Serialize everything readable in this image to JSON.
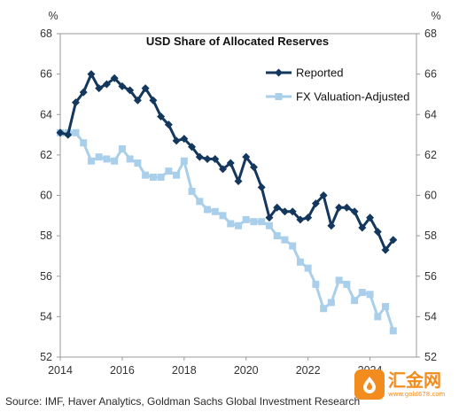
{
  "chart_data": {
    "type": "line",
    "title": "USD Share of Allocated Reserves",
    "left_unit": "%",
    "right_unit": "%",
    "ylim": [
      52,
      68
    ],
    "y_ticks": [
      "52",
      "54",
      "56",
      "58",
      "60",
      "62",
      "64",
      "66",
      "68"
    ],
    "xlim": [
      2014,
      2025.5
    ],
    "x_ticks": [
      "2014",
      "2016",
      "2018",
      "2020",
      "2022",
      "2024"
    ],
    "legend_position": "top-right",
    "series": [
      {
        "name": "Reported",
        "color": "#14375e",
        "marker": "diamond",
        "points": [
          [
            2014.0,
            63.1
          ],
          [
            2014.25,
            63.0
          ],
          [
            2014.5,
            64.6
          ],
          [
            2014.75,
            65.1
          ],
          [
            2015.0,
            66.0
          ],
          [
            2015.25,
            65.3
          ],
          [
            2015.5,
            65.5
          ],
          [
            2015.75,
            65.8
          ],
          [
            2016.0,
            65.4
          ],
          [
            2016.25,
            65.2
          ],
          [
            2016.5,
            64.7
          ],
          [
            2016.75,
            65.3
          ],
          [
            2017.0,
            64.7
          ],
          [
            2017.25,
            63.9
          ],
          [
            2017.5,
            63.5
          ],
          [
            2017.75,
            62.7
          ],
          [
            2018.0,
            62.8
          ],
          [
            2018.25,
            62.4
          ],
          [
            2018.5,
            61.9
          ],
          [
            2018.75,
            61.8
          ],
          [
            2019.0,
            61.8
          ],
          [
            2019.25,
            61.3
          ],
          [
            2019.5,
            61.6
          ],
          [
            2019.75,
            60.7
          ],
          [
            2020.0,
            61.9
          ],
          [
            2020.25,
            61.4
          ],
          [
            2020.5,
            60.4
          ],
          [
            2020.75,
            58.9
          ],
          [
            2021.0,
            59.4
          ],
          [
            2021.25,
            59.2
          ],
          [
            2021.5,
            59.2
          ],
          [
            2021.75,
            58.8
          ],
          [
            2022.0,
            58.9
          ],
          [
            2022.25,
            59.6
          ],
          [
            2022.5,
            60.0
          ],
          [
            2022.75,
            58.5
          ],
          [
            2023.0,
            59.4
          ],
          [
            2023.25,
            59.4
          ],
          [
            2023.5,
            59.2
          ],
          [
            2023.75,
            58.4
          ],
          [
            2024.0,
            58.9
          ],
          [
            2024.25,
            58.2
          ],
          [
            2024.5,
            57.3
          ],
          [
            2024.75,
            57.8
          ]
        ]
      },
      {
        "name": "FX Valuation-Adjusted",
        "color": "#a9cfea",
        "marker": "square",
        "points": [
          [
            2014.0,
            63.1
          ],
          [
            2014.25,
            63.1
          ],
          [
            2014.5,
            63.1
          ],
          [
            2014.75,
            62.6
          ],
          [
            2015.0,
            61.7
          ],
          [
            2015.25,
            61.9
          ],
          [
            2015.5,
            61.8
          ],
          [
            2015.75,
            61.7
          ],
          [
            2016.0,
            62.3
          ],
          [
            2016.25,
            61.8
          ],
          [
            2016.5,
            61.6
          ],
          [
            2016.75,
            61.0
          ],
          [
            2017.0,
            60.9
          ],
          [
            2017.25,
            60.9
          ],
          [
            2017.5,
            61.2
          ],
          [
            2017.75,
            61.0
          ],
          [
            2018.0,
            61.7
          ],
          [
            2018.25,
            60.2
          ],
          [
            2018.5,
            59.7
          ],
          [
            2018.75,
            59.3
          ],
          [
            2019.0,
            59.2
          ],
          [
            2019.25,
            59.0
          ],
          [
            2019.5,
            58.6
          ],
          [
            2019.75,
            58.5
          ],
          [
            2020.0,
            58.8
          ],
          [
            2020.25,
            58.7
          ],
          [
            2020.5,
            58.7
          ],
          [
            2020.75,
            58.5
          ],
          [
            2021.0,
            58.0
          ],
          [
            2021.25,
            57.8
          ],
          [
            2021.5,
            57.5
          ],
          [
            2021.75,
            56.7
          ],
          [
            2022.0,
            56.4
          ],
          [
            2022.25,
            55.6
          ],
          [
            2022.5,
            54.4
          ],
          [
            2022.75,
            54.7
          ],
          [
            2023.0,
            55.8
          ],
          [
            2023.25,
            55.6
          ],
          [
            2023.5,
            54.8
          ],
          [
            2023.75,
            55.2
          ],
          [
            2024.0,
            55.1
          ],
          [
            2024.25,
            54.0
          ],
          [
            2024.5,
            54.5
          ],
          [
            2024.75,
            53.3
          ]
        ]
      }
    ]
  },
  "source": "Source: IMF, Haver Analytics, Goldman Sachs Global Investment Research",
  "watermark": {
    "text": "汇金网",
    "url": "www.gold678.com"
  }
}
